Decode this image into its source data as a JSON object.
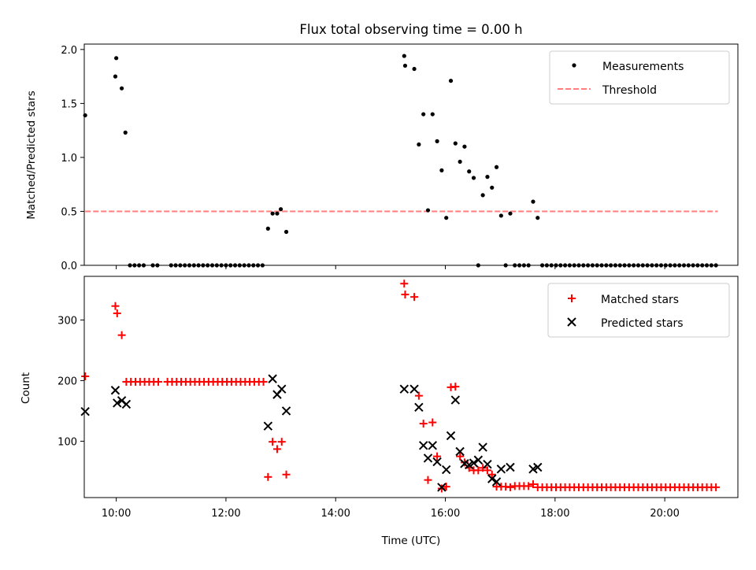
{
  "title": "Flux total observing time = 0.00 h",
  "colors": {
    "measurement": "#000000",
    "threshold": "#ff7f7f",
    "matched": "#ff0000",
    "predicted": "#000000"
  },
  "chart_data": [
    {
      "type": "scatter",
      "ylabel": "Matched/Predicted stars",
      "xlim": [
        "09:25",
        "21:20"
      ],
      "ylim": [
        0,
        2.05
      ],
      "yticks": [
        "0.0",
        "0.5",
        "1.0",
        "1.5",
        "2.0"
      ],
      "grid": false,
      "legend_position": "top-right",
      "legend": [
        "Measurements",
        "Threshold"
      ],
      "threshold": {
        "name": "Threshold",
        "y": 0.5,
        "x_range": [
          "09:26",
          "20:58"
        ]
      },
      "series": [
        {
          "name": "Measurements",
          "points": [
            [
              "09:26",
              1.39
            ],
            [
              "09:59",
              1.75
            ],
            [
              "10:00",
              1.92
            ],
            [
              "10:06",
              1.64
            ],
            [
              "10:10",
              1.23
            ],
            [
              "10:15",
              0.0
            ],
            [
              "10:20",
              0.0
            ],
            [
              "10:25",
              0.0
            ],
            [
              "10:30",
              0.0
            ],
            [
              "10:40",
              0.0
            ],
            [
              "10:45",
              0.0
            ],
            [
              "11:00",
              0.0
            ],
            [
              "11:05",
              0.0
            ],
            [
              "11:10",
              0.0
            ],
            [
              "11:15",
              0.0
            ],
            [
              "11:20",
              0.0
            ],
            [
              "11:25",
              0.0
            ],
            [
              "11:30",
              0.0
            ],
            [
              "11:35",
              0.0
            ],
            [
              "11:40",
              0.0
            ],
            [
              "11:45",
              0.0
            ],
            [
              "11:50",
              0.0
            ],
            [
              "11:55",
              0.0
            ],
            [
              "12:00",
              0.0
            ],
            [
              "12:05",
              0.0
            ],
            [
              "12:10",
              0.0
            ],
            [
              "12:15",
              0.0
            ],
            [
              "12:20",
              0.0
            ],
            [
              "12:25",
              0.0
            ],
            [
              "12:30",
              0.0
            ],
            [
              "12:35",
              0.0
            ],
            [
              "12:40",
              0.0
            ],
            [
              "12:46",
              0.34
            ],
            [
              "12:51",
              0.48
            ],
            [
              "12:56",
              0.48
            ],
            [
              "13:00",
              0.52
            ],
            [
              "13:06",
              0.31
            ],
            [
              "15:15",
              1.94
            ],
            [
              "15:16",
              1.85
            ],
            [
              "15:26",
              1.82
            ],
            [
              "15:31",
              1.12
            ],
            [
              "15:36",
              1.4
            ],
            [
              "15:41",
              0.51
            ],
            [
              "15:46",
              1.4
            ],
            [
              "15:51",
              1.15
            ],
            [
              "15:56",
              0.88
            ],
            [
              "16:01",
              0.44
            ],
            [
              "16:06",
              1.71
            ],
            [
              "16:11",
              1.13
            ],
            [
              "16:16",
              0.96
            ],
            [
              "16:21",
              1.1
            ],
            [
              "16:26",
              0.87
            ],
            [
              "16:31",
              0.81
            ],
            [
              "16:36",
              0.0
            ],
            [
              "16:41",
              0.65
            ],
            [
              "16:46",
              0.82
            ],
            [
              "16:51",
              0.72
            ],
            [
              "16:56",
              0.91
            ],
            [
              "17:01",
              0.46
            ],
            [
              "17:06",
              0.0
            ],
            [
              "17:11",
              0.48
            ],
            [
              "17:16",
              0.0
            ],
            [
              "17:21",
              0.0
            ],
            [
              "17:26",
              0.0
            ],
            [
              "17:31",
              0.0
            ],
            [
              "17:36",
              0.59
            ],
            [
              "17:41",
              0.44
            ],
            [
              "17:46",
              0.0
            ],
            [
              "17:51",
              0.0
            ],
            [
              "17:56",
              0.0
            ],
            [
              "18:01",
              0.0
            ],
            [
              "18:06",
              0.0
            ],
            [
              "18:11",
              0.0
            ],
            [
              "18:16",
              0.0
            ],
            [
              "18:21",
              0.0
            ],
            [
              "18:26",
              0.0
            ],
            [
              "18:31",
              0.0
            ],
            [
              "18:36",
              0.0
            ],
            [
              "18:41",
              0.0
            ],
            [
              "18:46",
              0.0
            ],
            [
              "18:51",
              0.0
            ],
            [
              "18:56",
              0.0
            ],
            [
              "19:01",
              0.0
            ],
            [
              "19:06",
              0.0
            ],
            [
              "19:11",
              0.0
            ],
            [
              "19:16",
              0.0
            ],
            [
              "19:21",
              0.0
            ],
            [
              "19:26",
              0.0
            ],
            [
              "19:31",
              0.0
            ],
            [
              "19:36",
              0.0
            ],
            [
              "19:41",
              0.0
            ],
            [
              "19:46",
              0.0
            ],
            [
              "19:51",
              0.0
            ],
            [
              "19:56",
              0.0
            ],
            [
              "20:01",
              0.0
            ],
            [
              "20:06",
              0.0
            ],
            [
              "20:11",
              0.0
            ],
            [
              "20:16",
              0.0
            ],
            [
              "20:21",
              0.0
            ],
            [
              "20:26",
              0.0
            ],
            [
              "20:31",
              0.0
            ],
            [
              "20:36",
              0.0
            ],
            [
              "20:41",
              0.0
            ],
            [
              "20:46",
              0.0
            ],
            [
              "20:51",
              0.0
            ],
            [
              "20:56",
              0.0
            ]
          ]
        }
      ]
    },
    {
      "type": "scatter",
      "xlabel": "Time (UTC)",
      "ylabel": "Count",
      "xlim": [
        "09:25",
        "21:20"
      ],
      "ylim": [
        7,
        372
      ],
      "xticks": [
        "10:00",
        "12:00",
        "14:00",
        "16:00",
        "18:00",
        "20:00"
      ],
      "yticks": [
        "100",
        "200",
        "300"
      ],
      "grid": false,
      "legend_position": "top-right",
      "legend": [
        "Matched stars",
        "Predicted stars"
      ],
      "series": [
        {
          "name": "Matched stars",
          "points": [
            [
              "09:26",
              207
            ],
            [
              "09:59",
              323
            ],
            [
              "10:01",
              311
            ],
            [
              "10:06",
              275
            ],
            [
              "10:11",
              198
            ],
            [
              "10:16",
              198
            ],
            [
              "10:21",
              198
            ],
            [
              "10:26",
              198
            ],
            [
              "10:31",
              198
            ],
            [
              "10:36",
              198
            ],
            [
              "10:41",
              198
            ],
            [
              "10:46",
              198
            ],
            [
              "10:56",
              198
            ],
            [
              "11:01",
              198
            ],
            [
              "11:06",
              198
            ],
            [
              "11:11",
              198
            ],
            [
              "11:16",
              198
            ],
            [
              "11:21",
              198
            ],
            [
              "11:26",
              198
            ],
            [
              "11:31",
              198
            ],
            [
              "11:36",
              198
            ],
            [
              "11:41",
              198
            ],
            [
              "11:46",
              198
            ],
            [
              "11:51",
              198
            ],
            [
              "11:56",
              198
            ],
            [
              "12:01",
              198
            ],
            [
              "12:06",
              198
            ],
            [
              "12:11",
              198
            ],
            [
              "12:16",
              198
            ],
            [
              "12:21",
              198
            ],
            [
              "12:26",
              198
            ],
            [
              "12:31",
              198
            ],
            [
              "12:36",
              198
            ],
            [
              "12:41",
              198
            ],
            [
              "12:46",
              41
            ],
            [
              "12:51",
              99
            ],
            [
              "12:56",
              87
            ],
            [
              "13:01",
              99
            ],
            [
              "13:06",
              45
            ],
            [
              "15:15",
              360
            ],
            [
              "15:16",
              342
            ],
            [
              "15:26",
              338
            ],
            [
              "15:31",
              175
            ],
            [
              "15:36",
              129
            ],
            [
              "15:41",
              36
            ],
            [
              "15:46",
              131
            ],
            [
              "15:51",
              75
            ],
            [
              "15:56",
              22
            ],
            [
              "16:01",
              25
            ],
            [
              "16:06",
              189
            ],
            [
              "16:11",
              190
            ],
            [
              "16:16",
              75
            ],
            [
              "16:21",
              65
            ],
            [
              "16:26",
              56
            ],
            [
              "16:31",
              52
            ],
            [
              "16:36",
              52
            ],
            [
              "16:41",
              56
            ],
            [
              "16:46",
              52
            ],
            [
              "16:51",
              45
            ],
            [
              "16:56",
              25
            ],
            [
              "17:01",
              25
            ],
            [
              "17:06",
              25
            ],
            [
              "17:11",
              24
            ],
            [
              "17:16",
              26
            ],
            [
              "17:21",
              26
            ],
            [
              "17:26",
              26
            ],
            [
              "17:31",
              26
            ],
            [
              "17:36",
              29
            ],
            [
              "17:41",
              24
            ],
            [
              "17:46",
              24
            ],
            [
              "17:51",
              24
            ],
            [
              "17:56",
              24
            ],
            [
              "18:01",
              24
            ],
            [
              "18:06",
              24
            ],
            [
              "18:11",
              24
            ],
            [
              "18:16",
              24
            ],
            [
              "18:21",
              24
            ],
            [
              "18:26",
              24
            ],
            [
              "18:31",
              24
            ],
            [
              "18:36",
              24
            ],
            [
              "18:41",
              24
            ],
            [
              "18:46",
              24
            ],
            [
              "18:51",
              24
            ],
            [
              "18:56",
              24
            ],
            [
              "19:01",
              24
            ],
            [
              "19:06",
              24
            ],
            [
              "19:11",
              24
            ],
            [
              "19:16",
              24
            ],
            [
              "19:21",
              24
            ],
            [
              "19:26",
              24
            ],
            [
              "19:31",
              24
            ],
            [
              "19:36",
              24
            ],
            [
              "19:41",
              24
            ],
            [
              "19:46",
              24
            ],
            [
              "19:51",
              24
            ],
            [
              "19:56",
              24
            ],
            [
              "20:01",
              24
            ],
            [
              "20:06",
              24
            ],
            [
              "20:11",
              24
            ],
            [
              "20:16",
              24
            ],
            [
              "20:21",
              24
            ],
            [
              "20:26",
              24
            ],
            [
              "20:31",
              24
            ],
            [
              "20:36",
              24
            ],
            [
              "20:41",
              24
            ],
            [
              "20:46",
              24
            ],
            [
              "20:51",
              24
            ],
            [
              "20:56",
              24
            ]
          ]
        },
        {
          "name": "Predicted stars",
          "points": [
            [
              "09:26",
              149
            ],
            [
              "09:59",
              184
            ],
            [
              "10:01",
              163
            ],
            [
              "10:06",
              167
            ],
            [
              "10:11",
              161
            ],
            [
              "12:46",
              125
            ],
            [
              "12:51",
              203
            ],
            [
              "12:56",
              177
            ],
            [
              "13:01",
              186
            ],
            [
              "13:06",
              150
            ],
            [
              "15:15",
              186
            ],
            [
              "15:26",
              186
            ],
            [
              "15:31",
              156
            ],
            [
              "15:36",
              93
            ],
            [
              "15:41",
              72
            ],
            [
              "15:46",
              93
            ],
            [
              "15:51",
              66
            ],
            [
              "15:56",
              24
            ],
            [
              "16:01",
              53
            ],
            [
              "16:06",
              109
            ],
            [
              "16:11",
              168
            ],
            [
              "16:16",
              83
            ],
            [
              "16:21",
              63
            ],
            [
              "16:26",
              61
            ],
            [
              "16:31",
              64
            ],
            [
              "16:36",
              69
            ],
            [
              "16:41",
              90
            ],
            [
              "16:46",
              62
            ],
            [
              "16:51",
              38
            ],
            [
              "16:56",
              33
            ],
            [
              "17:01",
              54
            ],
            [
              "17:11",
              57
            ],
            [
              "17:36",
              54
            ],
            [
              "17:41",
              57
            ]
          ]
        }
      ]
    }
  ]
}
